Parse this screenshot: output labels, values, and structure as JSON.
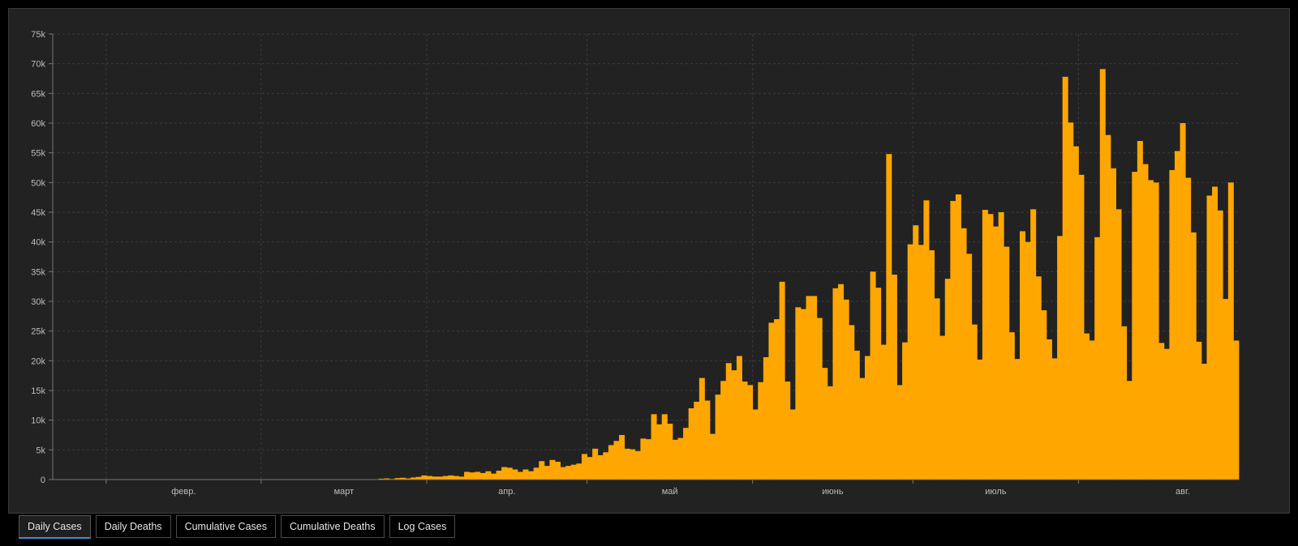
{
  "chart_data": {
    "type": "bar",
    "title": "",
    "xlabel": "",
    "ylabel": "",
    "ylim": [
      0,
      75000
    ],
    "y_ticks": [
      "0",
      "5k",
      "10k",
      "15k",
      "20k",
      "25k",
      "30k",
      "35k",
      "40k",
      "45k",
      "50k",
      "55k",
      "60k",
      "65k",
      "70k",
      "75k"
    ],
    "x_tick_labels": [
      "февр.",
      "март",
      "апр.",
      "май",
      "июнь",
      "июль",
      "авг."
    ],
    "grid": true,
    "bar_color": "#ffa700",
    "values": [
      0,
      0,
      0,
      0,
      0,
      0,
      0,
      0,
      0,
      0,
      0,
      0,
      0,
      0,
      0,
      0,
      0,
      0,
      0,
      0,
      0,
      0,
      0,
      0,
      0,
      0,
      0,
      0,
      0,
      0,
      0,
      0,
      0,
      0,
      0,
      0,
      0,
      0,
      0,
      0,
      0,
      0,
      0,
      0,
      0,
      0,
      0,
      0,
      0,
      0,
      0,
      0,
      0,
      0,
      0,
      0,
      0,
      0,
      0,
      0,
      50,
      150,
      200,
      100,
      250,
      300,
      200,
      350,
      450,
      700,
      600,
      500,
      500,
      600,
      700,
      600,
      500,
      1300,
      1200,
      1300,
      1100,
      1400,
      1000,
      1500,
      2100,
      2000,
      1700,
      1300,
      1700,
      1400,
      2000,
      3100,
      2300,
      3300,
      3000,
      2100,
      2300,
      2500,
      2700,
      4300,
      3800,
      5200,
      4100,
      4600,
      5800,
      6500,
      7500,
      5200,
      5100,
      4800,
      6900,
      6800,
      11000,
      9300,
      11000,
      9400,
      6700,
      7000,
      8700,
      12000,
      13100,
      17100,
      13300,
      7700,
      14300,
      16600,
      19600,
      18400,
      20800,
      16500,
      15900,
      11800,
      16400,
      20600,
      26400,
      27000,
      33300,
      16500,
      11800,
      29000,
      28700,
      30900,
      30900,
      27200,
      18800,
      15700,
      32200,
      32900,
      30300,
      26000,
      21700,
      17100,
      20800,
      35000,
      32300,
      22700,
      54800,
      34500,
      15900,
      23100,
      39600,
      42800,
      39500,
      47000,
      38600,
      30500,
      24200,
      33800,
      46900,
      48000,
      42300,
      38000,
      26100,
      20200,
      45400,
      44700,
      42600,
      45000,
      39200,
      24800,
      20300,
      41800,
      40000,
      45500,
      34200,
      28500,
      23600,
      20400,
      41000,
      67800,
      60100,
      56100,
      51300,
      24600,
      23400,
      40800,
      69100,
      58000,
      52400,
      45500,
      25800,
      16600,
      51800,
      57000,
      53100,
      50400,
      50000,
      23000,
      22000,
      52100,
      55300,
      60000,
      50800,
      41600,
      23200,
      19500,
      47800,
      49300,
      45300,
      30400,
      50000,
      23400
    ]
  },
  "tabs": [
    {
      "label": "Daily Cases",
      "active": true
    },
    {
      "label": "Daily Deaths",
      "active": false
    },
    {
      "label": "Cumulative Cases",
      "active": false
    },
    {
      "label": "Cumulative Deaths",
      "active": false
    },
    {
      "label": "Log Cases",
      "active": false
    }
  ]
}
